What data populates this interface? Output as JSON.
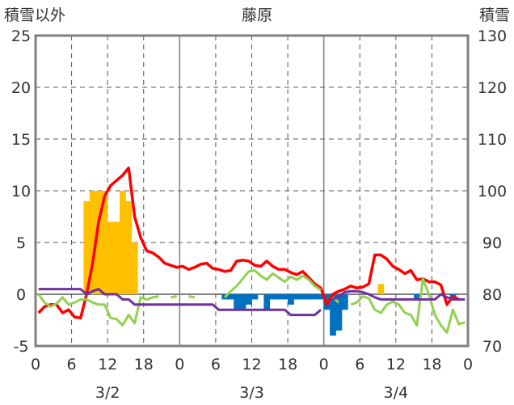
{
  "chart_data": {
    "type": "bar+line",
    "title": "藤原",
    "left_axis_label": "積雪以外",
    "right_axis_label": "積雪",
    "ylim_left": [
      -5,
      25
    ],
    "yticks_left": [
      "25",
      "20",
      "15",
      "10",
      "5",
      "0",
      "-5"
    ],
    "ylim_right": [
      70,
      130
    ],
    "yticks_right": [
      "130",
      "120",
      "110",
      "100",
      "90",
      "80",
      "70"
    ],
    "xlim_hours": [
      0,
      72
    ],
    "xtick_labels": [
      "0",
      "6",
      "12",
      "18",
      "0",
      "6",
      "12",
      "18",
      "0",
      "6",
      "12",
      "18",
      "0"
    ],
    "day_labels": [
      "3/2",
      "3/3",
      "3/4"
    ],
    "grid": true,
    "colors": {
      "bar_positive": "#FFC000",
      "bar_negative": "#0070C0",
      "red": "#FF0000",
      "green": "#92D050",
      "purple": "#7030A0"
    },
    "bars": [
      {
        "h": 8,
        "v": 9
      },
      {
        "h": 9,
        "v": 10
      },
      {
        "h": 10,
        "v": 10
      },
      {
        "h": 11,
        "v": 10
      },
      {
        "h": 12,
        "v": 7
      },
      {
        "h": 13,
        "v": 7
      },
      {
        "h": 14,
        "v": 10
      },
      {
        "h": 15,
        "v": 9
      },
      {
        "h": 16,
        "v": 5
      },
      {
        "h": 31,
        "v": -0.5
      },
      {
        "h": 32,
        "v": -0.5
      },
      {
        "h": 33,
        "v": -1.5
      },
      {
        "h": 34,
        "v": -1.5
      },
      {
        "h": 35,
        "v": -1
      },
      {
        "h": 36,
        "v": -0.5
      },
      {
        "h": 38,
        "v": -1.5
      },
      {
        "h": 39,
        "v": -0.5
      },
      {
        "h": 40,
        "v": -0.5
      },
      {
        "h": 41,
        "v": -0.5
      },
      {
        "h": 42,
        "v": -1
      },
      {
        "h": 43,
        "v": -0.5
      },
      {
        "h": 44,
        "v": -0.5
      },
      {
        "h": 45,
        "v": -0.5
      },
      {
        "h": 46,
        "v": -0.5
      },
      {
        "h": 47,
        "v": -0.5
      },
      {
        "h": 48,
        "v": -1.5
      },
      {
        "h": 49,
        "v": -4
      },
      {
        "h": 50,
        "v": -3.5
      },
      {
        "h": 51,
        "v": -1.5
      },
      {
        "h": 57,
        "v": 1
      },
      {
        "h": 63,
        "v": -0.5
      },
      {
        "h": 69,
        "v": -0.5
      }
    ],
    "series": [
      {
        "color": "red",
        "points": [
          [
            0,
            -1.8
          ],
          [
            1,
            -1.2
          ],
          [
            2,
            -1
          ],
          [
            3,
            -1
          ],
          [
            4,
            -1.8
          ],
          [
            5,
            -1.5
          ],
          [
            6,
            -2.2
          ],
          [
            7,
            -2.3
          ],
          [
            8,
            0
          ],
          [
            9,
            3
          ],
          [
            10,
            7
          ],
          [
            11,
            9.5
          ],
          [
            12,
            10.5
          ],
          [
            13,
            11
          ],
          [
            14,
            11.5
          ],
          [
            15,
            12.2
          ],
          [
            16,
            7.5
          ],
          [
            17,
            5.5
          ],
          [
            18,
            4.2
          ],
          [
            19,
            4
          ],
          [
            20,
            3.6
          ],
          [
            21,
            3
          ],
          [
            22,
            2.8
          ],
          [
            23,
            2.6
          ],
          [
            24,
            2.7
          ],
          [
            25,
            2.4
          ],
          [
            26,
            2.6
          ],
          [
            27,
            2.9
          ],
          [
            28,
            3
          ],
          [
            29,
            2.5
          ],
          [
            30,
            2.4
          ],
          [
            31,
            2.2
          ],
          [
            32,
            2.3
          ],
          [
            33,
            3.2
          ],
          [
            34,
            3.3
          ],
          [
            35,
            3.2
          ],
          [
            36,
            2.8
          ],
          [
            37,
            2.7
          ],
          [
            38,
            3.2
          ],
          [
            39,
            2.7
          ],
          [
            40,
            2.4
          ],
          [
            41,
            2.4
          ],
          [
            42,
            2.1
          ],
          [
            43,
            1.9
          ],
          [
            44,
            2.2
          ],
          [
            45,
            1.6
          ],
          [
            46,
            1
          ],
          [
            47,
            0.6
          ],
          [
            48,
            -1
          ],
          [
            49,
            0
          ],
          [
            50,
            0.3
          ],
          [
            51,
            0.5
          ],
          [
            52,
            0.8
          ],
          [
            53,
            0.6
          ],
          [
            54,
            0.7
          ],
          [
            55,
            1
          ],
          [
            56,
            3.8
          ],
          [
            57,
            3.8
          ],
          [
            58,
            3.4
          ],
          [
            59,
            2.7
          ],
          [
            60,
            2.4
          ],
          [
            61,
            2
          ],
          [
            62,
            2.3
          ],
          [
            63,
            1.4
          ],
          [
            64,
            1.5
          ],
          [
            65,
            1.2
          ],
          [
            66,
            1.2
          ],
          [
            67,
            0.9
          ],
          [
            68,
            -1
          ],
          [
            69,
            -0.2
          ],
          [
            70,
            -0.5
          ]
        ]
      },
      {
        "color": "green",
        "points": [
          [
            0,
            0
          ],
          [
            1,
            -0.8
          ],
          [
            2,
            -1.2
          ],
          [
            3,
            -0.9
          ],
          [
            4,
            -0.3
          ],
          [
            5,
            -1
          ],
          [
            6,
            -0.8
          ],
          [
            7,
            -0.5
          ],
          [
            8,
            -0.5
          ],
          [
            9,
            -0.8
          ],
          [
            10,
            -1
          ],
          [
            11,
            -1
          ],
          [
            12,
            -2.3
          ],
          [
            13,
            -2.4
          ],
          [
            14,
            -3
          ],
          [
            15,
            -2
          ],
          [
            16,
            -2.8
          ],
          [
            17,
            -0.3
          ],
          [
            18,
            -0.5
          ],
          [
            19,
            -0.3
          ],
          [
            20,
            -0.2
          ],
          null,
          [
            22,
            -0.3
          ],
          [
            23,
            -0.2
          ],
          null,
          [
            25,
            -0.2
          ],
          [
            26,
            -0.3
          ],
          null,
          [
            31,
            -0.3
          ],
          [
            32,
            0.3
          ],
          [
            33,
            0.8
          ],
          [
            34,
            1.5
          ],
          [
            35,
            2.2
          ],
          [
            36,
            2.3
          ],
          [
            37,
            1.8
          ],
          [
            38,
            1.4
          ],
          [
            39,
            2
          ],
          [
            40,
            1.6
          ],
          [
            41,
            1.2
          ],
          [
            42,
            1.7
          ],
          [
            43,
            1.4
          ],
          [
            44,
            1.8
          ],
          [
            45,
            1.4
          ],
          [
            46,
            0.8
          ],
          [
            47,
            0.4
          ],
          null,
          [
            49,
            -0.3
          ],
          [
            50,
            -0.8
          ],
          null,
          [
            52,
            -1
          ],
          [
            53,
            -0.8
          ],
          [
            54,
            -0.2
          ],
          [
            55,
            -0.4
          ],
          [
            56,
            -1.5
          ],
          [
            57,
            -1.8
          ],
          [
            58,
            -1
          ],
          [
            59,
            -0.7
          ],
          [
            60,
            -1
          ],
          [
            61,
            -1.8
          ],
          [
            62,
            -2
          ],
          [
            63,
            -3
          ],
          [
            64,
            1.5
          ],
          [
            65,
            0
          ],
          [
            66,
            -2
          ],
          [
            67,
            -3
          ],
          [
            68,
            -3.7
          ],
          [
            69,
            -1.5
          ],
          [
            70,
            -2.9
          ],
          [
            71,
            -2.7
          ]
        ]
      },
      {
        "color": "purple",
        "points": [
          [
            0,
            0.5
          ],
          [
            1,
            0.5
          ],
          [
            2,
            0.5
          ],
          [
            3,
            0.5
          ],
          [
            4,
            0.5
          ],
          [
            5,
            0.5
          ],
          [
            6,
            0.5
          ],
          [
            7,
            0.5
          ],
          [
            8,
            0
          ],
          [
            9,
            0.3
          ],
          [
            10,
            0.5
          ],
          [
            11,
            0
          ],
          [
            12,
            0
          ],
          [
            13,
            0
          ],
          [
            14,
            -0.5
          ],
          [
            15,
            -0.5
          ],
          [
            16,
            -1
          ],
          [
            17,
            -1
          ],
          [
            18,
            -1
          ],
          [
            19,
            -1
          ],
          [
            20,
            -1
          ],
          [
            21,
            -1
          ],
          [
            22,
            -1
          ],
          [
            23,
            -1
          ],
          [
            24,
            -1
          ],
          [
            25,
            -1
          ],
          [
            26,
            -1
          ],
          [
            27,
            -1
          ],
          [
            28,
            -1
          ],
          [
            29,
            -1
          ],
          [
            30,
            -1.5
          ],
          [
            31,
            -1.5
          ],
          [
            32,
            -1.5
          ],
          [
            33,
            -1.5
          ],
          [
            34,
            -1.5
          ],
          [
            35,
            -1.5
          ],
          [
            36,
            -1.5
          ],
          [
            37,
            -1.5
          ],
          [
            38,
            -1.5
          ],
          [
            39,
            -1.5
          ],
          [
            40,
            -1.5
          ],
          [
            41,
            -1.5
          ],
          [
            42,
            -2
          ],
          [
            43,
            -2
          ],
          [
            44,
            -2
          ],
          [
            45,
            -2
          ],
          [
            46,
            -2
          ],
          [
            47,
            -1.5
          ],
          null,
          [
            49,
            -0.5
          ],
          [
            50,
            -0.2
          ],
          [
            51,
            0.2
          ],
          [
            52,
            0.3
          ],
          [
            53,
            0.3
          ],
          [
            54,
            0.2
          ],
          [
            55,
            0
          ],
          [
            56,
            -0.3
          ],
          [
            57,
            -0.5
          ],
          [
            58,
            -0.5
          ],
          [
            59,
            -0.5
          ],
          [
            60,
            -0.5
          ],
          [
            61,
            -0.5
          ],
          [
            62,
            -0.5
          ],
          [
            63,
            -0.5
          ],
          [
            64,
            -0.5
          ],
          [
            65,
            -0.5
          ],
          [
            66,
            -0.5
          ],
          [
            67,
            0
          ],
          [
            68,
            -0.3
          ],
          [
            69,
            -0.5
          ],
          [
            70,
            -0.5
          ],
          [
            71,
            -0.5
          ]
        ]
      }
    ]
  }
}
